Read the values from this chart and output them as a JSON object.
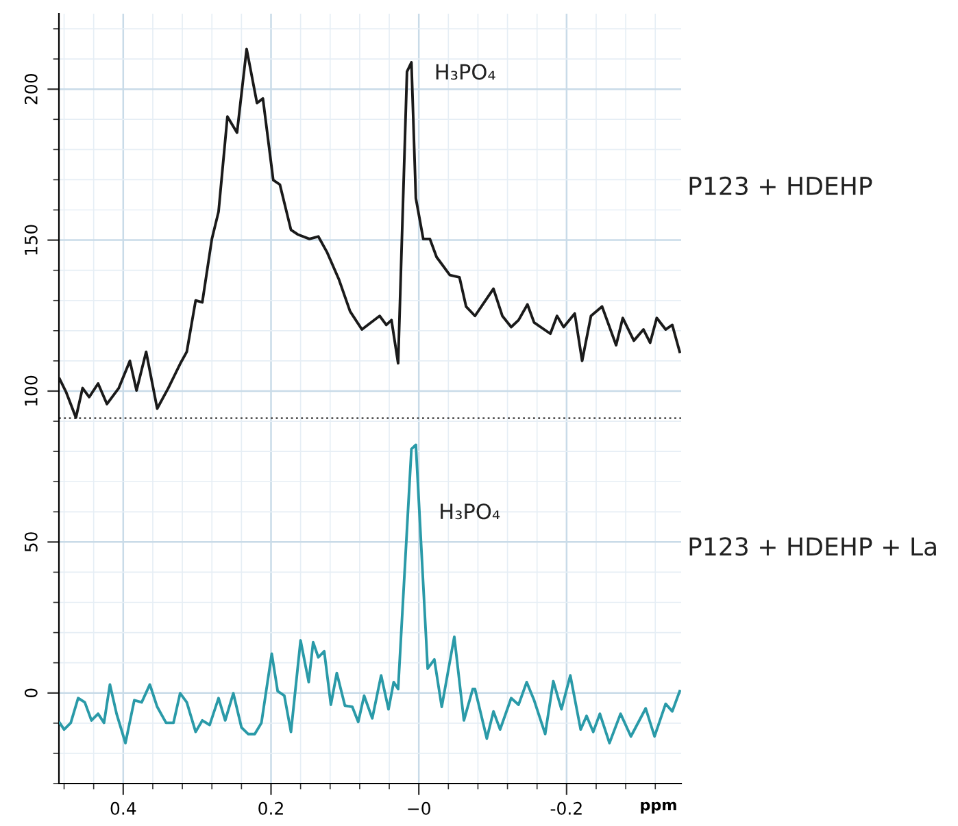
{
  "chart_data": {
    "type": "line",
    "xlabel": "ppm",
    "xlim": [
      0.487,
      -0.355
    ],
    "ylim": [
      -30,
      225
    ],
    "xticks": [
      0.4,
      0.2,
      {
        "value": 0,
        "label": "−0"
      },
      -0.2
    ],
    "yticks": [
      0,
      50,
      100,
      150,
      200
    ],
    "grid": true,
    "legend": false,
    "line_style": "solid",
    "marker": "none",
    "ref_lines": [
      {
        "axis": "y",
        "value": 91,
        "label": null,
        "color": "#555555",
        "line_style": "dotted"
      }
    ],
    "annotations": [
      "H₃PO₄",
      "H₃PO₄"
    ],
    "series": [
      {
        "name": "P123 + HDEHP",
        "color": "#1a1a1a",
        "x": [
          0.486,
          0.477,
          0.464,
          0.455,
          0.446,
          0.434,
          0.422,
          0.406,
          0.391,
          0.382,
          0.369,
          0.354,
          0.339,
          0.323,
          0.314,
          0.302,
          0.293,
          0.28,
          0.271,
          0.259,
          0.246,
          0.233,
          0.219,
          0.211,
          0.197,
          0.188,
          0.173,
          0.164,
          0.148,
          0.136,
          0.124,
          0.108,
          0.093,
          0.077,
          0.053,
          0.044,
          0.037,
          0.028,
          0.016,
          0.01,
          0.004,
          -0.006,
          -0.015,
          -0.024,
          -0.042,
          -0.055,
          -0.064,
          -0.076,
          -0.101,
          -0.113,
          -0.125,
          -0.135,
          -0.147,
          -0.156,
          -0.178,
          -0.187,
          -0.196,
          -0.211,
          -0.221,
          -0.233,
          -0.248,
          -0.267,
          -0.276,
          -0.291,
          -0.304,
          -0.313,
          -0.322,
          -0.334,
          -0.343,
          -0.353
        ],
        "values": [
          104,
          99.5,
          91.2,
          101,
          98,
          102.5,
          95.7,
          101,
          110,
          100.2,
          113,
          94.2,
          101,
          109,
          113,
          130,
          129.4,
          150.4,
          159.4,
          190.9,
          185.6,
          213.3,
          195.4,
          196.9,
          169.9,
          168.4,
          153.4,
          151.9,
          150.4,
          151.2,
          145.9,
          136.9,
          126.4,
          120.4,
          124.9,
          121.9,
          123.5,
          109.2,
          205.8,
          208.9,
          163.9,
          150.4,
          150.4,
          144.4,
          138.4,
          137.7,
          128,
          124.9,
          133.9,
          124.9,
          121.2,
          123.5,
          128.7,
          122.7,
          119,
          124.9,
          121.2,
          125.7,
          110,
          124.9,
          128,
          115.2,
          124.2,
          116.7,
          120.4,
          116,
          124.2,
          120.4,
          121.9,
          113
        ]
      },
      {
        "name": "P123 + HDEHP + La",
        "color": "#2a9aa8",
        "x": [
          0.486,
          0.48,
          0.471,
          0.461,
          0.452,
          0.443,
          0.434,
          0.426,
          0.418,
          0.409,
          0.397,
          0.385,
          0.375,
          0.364,
          0.354,
          0.342,
          0.332,
          0.323,
          0.314,
          0.302,
          0.293,
          0.283,
          0.271,
          0.262,
          0.251,
          0.24,
          0.231,
          0.222,
          0.213,
          0.199,
          0.191,
          0.182,
          0.173,
          0.16,
          0.149,
          0.143,
          0.136,
          0.128,
          0.119,
          0.111,
          0.1,
          0.09,
          0.082,
          0.074,
          0.063,
          0.051,
          0.041,
          0.034,
          0.028,
          0.01,
          0.004,
          -0.012,
          -0.021,
          -0.031,
          -0.048,
          -0.061,
          -0.073,
          -0.076,
          -0.092,
          -0.101,
          -0.11,
          -0.125,
          -0.135,
          -0.146,
          -0.156,
          -0.171,
          -0.182,
          -0.193,
          -0.205,
          -0.219,
          -0.227,
          -0.236,
          -0.245,
          -0.258,
          -0.273,
          -0.287,
          -0.307,
          -0.319,
          -0.334,
          -0.343,
          -0.353
        ],
        "values": [
          -9.9,
          -12.1,
          -9.9,
          -1.7,
          -3.1,
          -9.1,
          -6.9,
          -9.9,
          2.8,
          -6.9,
          -16.6,
          -2.4,
          -3.1,
          2.8,
          -4.6,
          -9.9,
          -9.9,
          -0.1,
          -3.1,
          -12.9,
          -9.1,
          -10.6,
          -1.7,
          -9.1,
          -0.1,
          -11.4,
          -13.6,
          -13.6,
          -9.9,
          13,
          0.6,
          -0.9,
          -12.9,
          17.4,
          3.6,
          16.8,
          11.8,
          13.8,
          -3.9,
          6.6,
          -4.2,
          -4.6,
          -9.6,
          -0.9,
          -8.4,
          5.8,
          -5.4,
          3.6,
          1.3,
          80.8,
          82.2,
          8.1,
          11.1,
          -4.6,
          18.6,
          -9.1,
          1.3,
          1.3,
          -15.1,
          -6.1,
          -12.1,
          -1.7,
          -3.9,
          3.6,
          -2.4,
          -13.6,
          3.9,
          -5.4,
          5.8,
          -12.1,
          -7.6,
          -12.9,
          -6.9,
          -16.6,
          -6.9,
          -14.4,
          -5.1,
          -14.4,
          -3.6,
          -6.1,
          0.6
        ]
      }
    ]
  }
}
